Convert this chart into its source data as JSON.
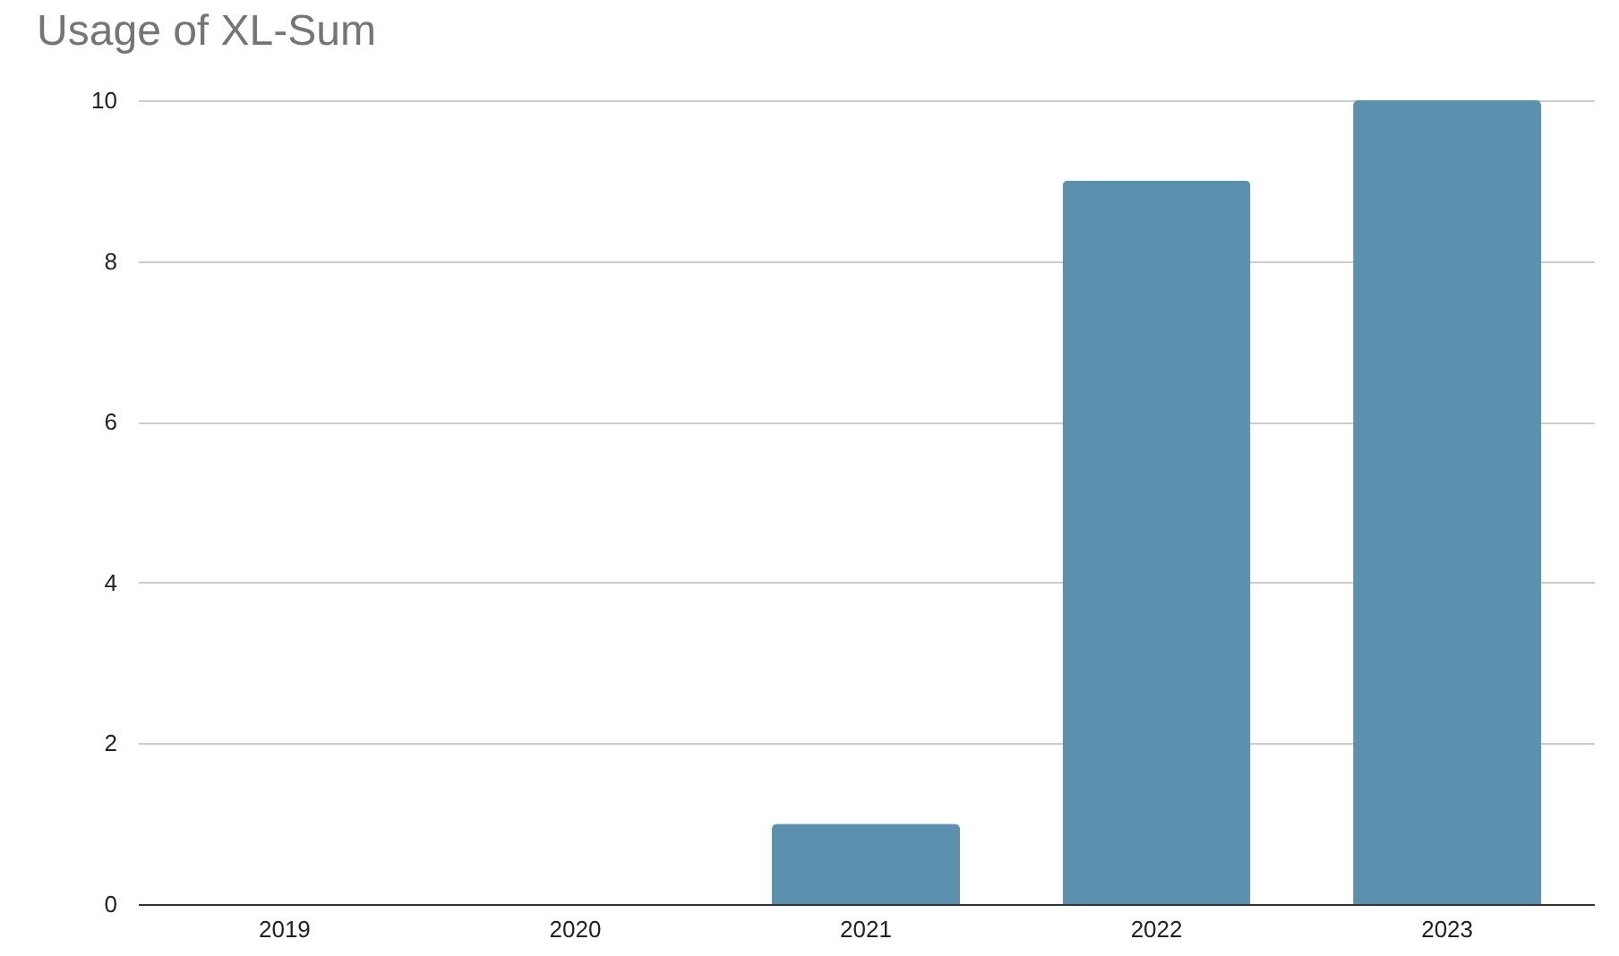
{
  "chart_data": {
    "type": "bar",
    "title": "Usage of XL-Sum",
    "categories": [
      "2019",
      "2020",
      "2021",
      "2022",
      "2023"
    ],
    "values": [
      0,
      0,
      1,
      9,
      10
    ],
    "color": "#5b91ae",
    "ylim": [
      0,
      10
    ],
    "yticks": [
      0,
      2,
      4,
      6,
      8,
      10
    ],
    "grid": "y"
  }
}
